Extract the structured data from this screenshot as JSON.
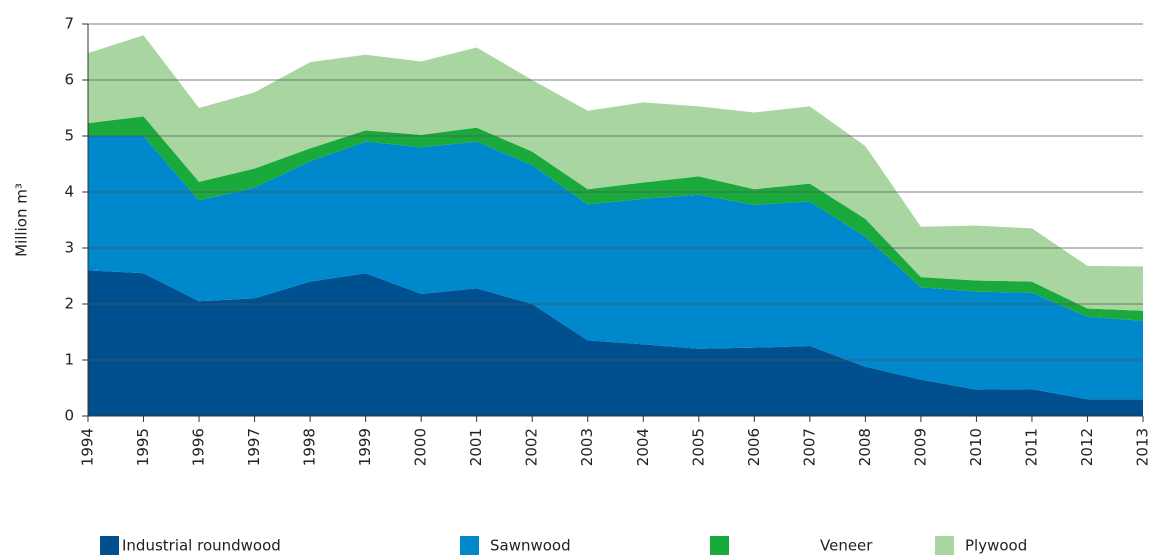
{
  "chart_data": {
    "type": "stacked_area",
    "y_label": "Million m³",
    "categories": [
      "1994",
      "1995",
      "1996",
      "1997",
      "1998",
      "1999",
      "2000",
      "2001",
      "2002",
      "2003",
      "2004",
      "2005",
      "2006",
      "2007",
      "2008",
      "2009",
      "2010",
      "2011",
      "2012",
      "2013"
    ],
    "series": [
      {
        "name": "Industrial roundwood",
        "color": "#004f8f",
        "values": [
          2.6,
          2.55,
          2.05,
          2.1,
          2.4,
          2.55,
          2.18,
          2.28,
          2.0,
          1.35,
          1.28,
          1.2,
          1.22,
          1.25,
          0.88,
          0.65,
          0.47,
          0.48,
          0.3,
          0.3
        ]
      },
      {
        "name": "Sawnwood",
        "color": "#0088cc",
        "values": [
          2.4,
          2.45,
          1.8,
          1.98,
          2.15,
          2.35,
          2.62,
          2.62,
          2.48,
          2.43,
          2.6,
          2.75,
          2.55,
          2.58,
          2.32,
          1.65,
          1.75,
          1.72,
          1.47,
          1.4
        ]
      },
      {
        "name": "Veneer",
        "color": "#1aaa3c",
        "values": [
          0.23,
          0.35,
          0.33,
          0.34,
          0.23,
          0.2,
          0.22,
          0.25,
          0.24,
          0.27,
          0.29,
          0.33,
          0.28,
          0.32,
          0.32,
          0.18,
          0.2,
          0.2,
          0.15,
          0.18
        ]
      },
      {
        "name": "Plywood",
        "color": "#a8d5a0",
        "values": [
          1.25,
          1.45,
          1.32,
          1.36,
          1.54,
          1.35,
          1.31,
          1.43,
          1.28,
          1.4,
          1.43,
          1.25,
          1.37,
          1.38,
          1.3,
          0.9,
          0.98,
          0.95,
          0.76,
          0.79
        ]
      }
    ],
    "ylim": [
      0,
      7
    ],
    "yticks": [
      0,
      1,
      2,
      3,
      4,
      5,
      6,
      7
    ],
    "grid": true
  }
}
